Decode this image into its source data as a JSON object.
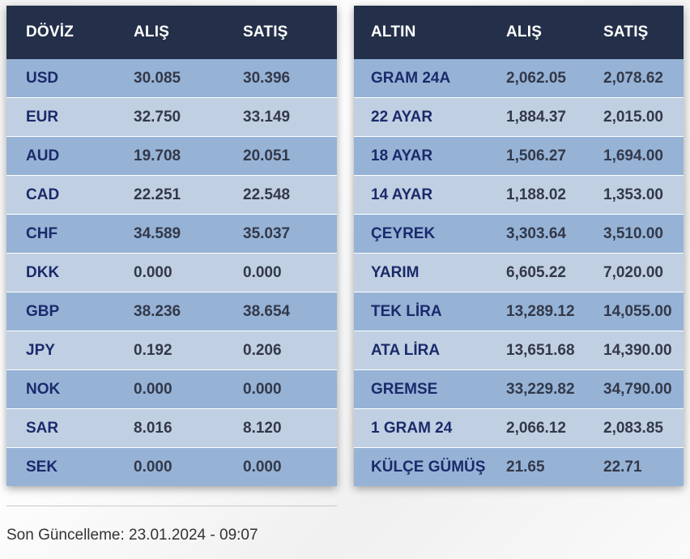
{
  "doviz": {
    "headers": [
      "DÖVİZ",
      "ALIŞ",
      "SATIŞ"
    ],
    "rows": [
      {
        "code": "USD",
        "buy": "30.085",
        "sell": "30.396"
      },
      {
        "code": "EUR",
        "buy": "32.750",
        "sell": "33.149"
      },
      {
        "code": "AUD",
        "buy": "19.708",
        "sell": "20.051"
      },
      {
        "code": "CAD",
        "buy": "22.251",
        "sell": "22.548"
      },
      {
        "code": "CHF",
        "buy": "34.589",
        "sell": "35.037"
      },
      {
        "code": "DKK",
        "buy": "0.000",
        "sell": "0.000"
      },
      {
        "code": "GBP",
        "buy": "38.236",
        "sell": "38.654"
      },
      {
        "code": "JPY",
        "buy": "0.192",
        "sell": "0.206"
      },
      {
        "code": "NOK",
        "buy": "0.000",
        "sell": "0.000"
      },
      {
        "code": "SAR",
        "buy": "8.016",
        "sell": "8.120"
      },
      {
        "code": "SEK",
        "buy": "0.000",
        "sell": "0.000"
      }
    ]
  },
  "altin": {
    "headers": [
      "ALTIN",
      "ALIŞ",
      "SATIŞ"
    ],
    "rows": [
      {
        "name": "GRAM 24A",
        "buy": "2,062.05",
        "sell": "2,078.62"
      },
      {
        "name": "22 AYAR",
        "buy": "1,884.37",
        "sell": "2,015.00"
      },
      {
        "name": "18 AYAR",
        "buy": "1,506.27",
        "sell": "1,694.00"
      },
      {
        "name": "14 AYAR",
        "buy": "1,188.02",
        "sell": "1,353.00"
      },
      {
        "name": "ÇEYREK",
        "buy": "3,303.64",
        "sell": "3,510.00"
      },
      {
        "name": "YARIM",
        "buy": "6,605.22",
        "sell": "7,020.00"
      },
      {
        "name": "TEK LİRA",
        "buy": "13,289.12",
        "sell": "14,055.00"
      },
      {
        "name": "ATA LİRA",
        "buy": "13,651.68",
        "sell": "14,390.00"
      },
      {
        "name": "GREMSE",
        "buy": "33,229.82",
        "sell": "34,790.00"
      },
      {
        "name": "1 GRAM 24",
        "buy": "2,066.12",
        "sell": "2,083.85"
      },
      {
        "name": "KÜLÇE GÜMÜŞ",
        "buy": "21.65",
        "sell": "22.71"
      }
    ]
  },
  "footer": {
    "last_updated": "Son Güncelleme: 23.01.2024 - 09:07"
  },
  "colors": {
    "header_bg": "#243049",
    "row_odd": "#96b3d6",
    "row_even": "#c0d0e2",
    "name_text": "#1b2a6b"
  }
}
